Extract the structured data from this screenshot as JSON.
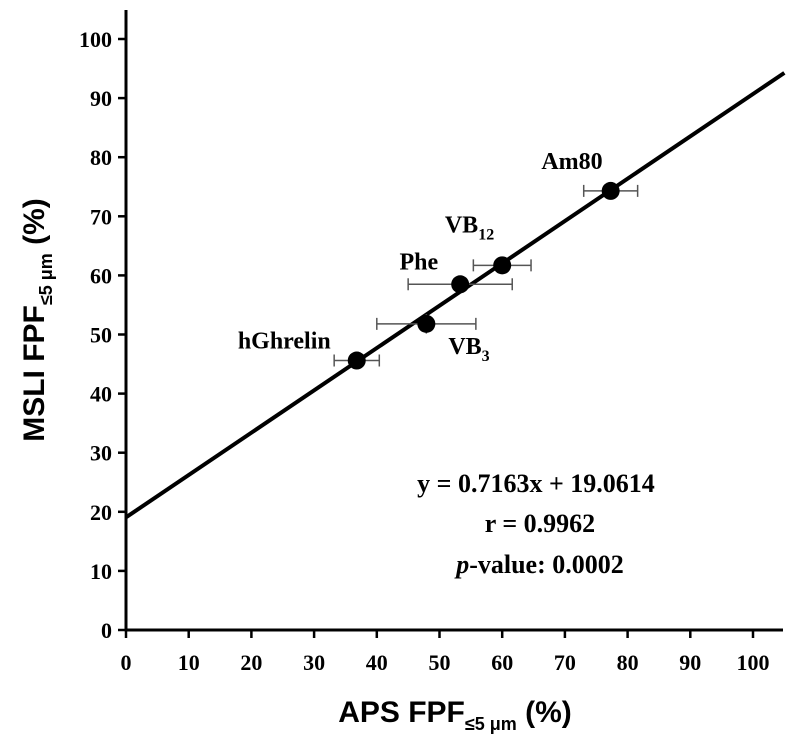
{
  "chart_data": {
    "type": "scatter",
    "xlabel": "APS FPF",
    "xlabel_sub": "≤5 μm",
    "xlabel_unit": "(%)",
    "ylabel": "MSLI FPF",
    "ylabel_sub": "≤5 μm",
    "ylabel_unit": "(%)",
    "xlim": [
      0,
      105
    ],
    "ylim": [
      0,
      105
    ],
    "x_ticks": [
      0,
      10,
      20,
      30,
      40,
      50,
      60,
      70,
      80,
      90,
      100
    ],
    "y_ticks": [
      0,
      10,
      20,
      30,
      40,
      50,
      60,
      70,
      80,
      90,
      100
    ],
    "grid": false,
    "points": [
      {
        "label": "hGhrelin",
        "label_sub": "",
        "x": 36.8,
        "y": 45.6,
        "xerr": 3.6,
        "yerr": 0
      },
      {
        "label": "VB",
        "label_sub": "3",
        "x": 47.9,
        "y": 51.8,
        "xerr": 7.9,
        "yerr": 0.8
      },
      {
        "label": "Phe",
        "label_sub": "",
        "x": 53.3,
        "y": 58.5,
        "xerr": 8.3,
        "yerr": 0.5
      },
      {
        "label": "VB",
        "label_sub": "12",
        "x": 60.0,
        "y": 61.7,
        "xerr": 4.6,
        "yerr": 0.5
      },
      {
        "label": "Am80",
        "label_sub": "",
        "x": 77.3,
        "y": 74.3,
        "xerr": 4.3,
        "yerr": 0.5
      }
    ],
    "fit": {
      "slope": 0.7163,
      "intercept": 19.0614
    },
    "annotations": {
      "equation": "y = 0.7163x + 19.0614",
      "r_text": "r = 0.9962",
      "p_prefix": "p",
      "p_rest": "-value: 0.0002"
    }
  }
}
